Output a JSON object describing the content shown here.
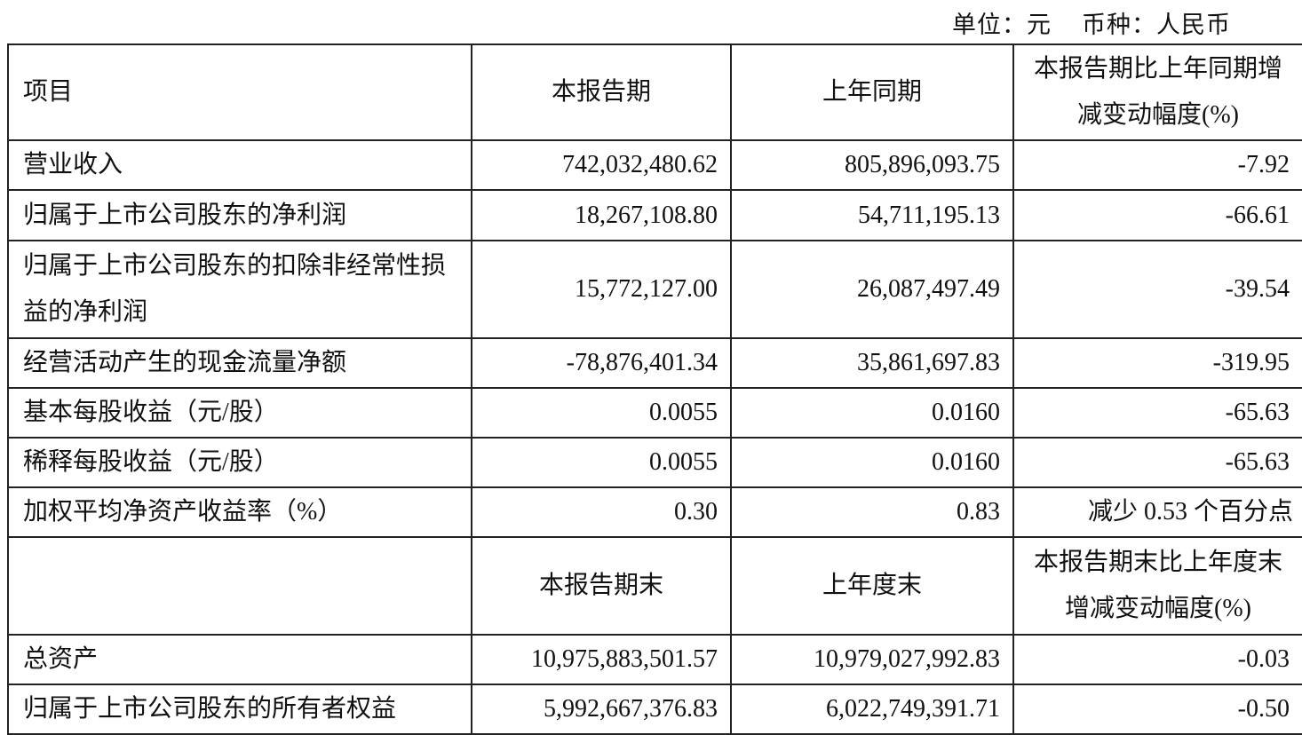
{
  "unit_label": "单位：元",
  "currency_label": "币种：人民币",
  "header": {
    "item": "项目",
    "current": "本报告期",
    "prior": "上年同期",
    "change": "本报告期比上年同期增减变动幅度(%)"
  },
  "rows": [
    {
      "label": "营业收入",
      "current": "742,032,480.62",
      "prior": "805,896,093.75",
      "change": "-7.92"
    },
    {
      "label": "归属于上市公司股东的净利润",
      "current": "18,267,108.80",
      "prior": "54,711,195.13",
      "change": "-66.61"
    },
    {
      "label": "归属于上市公司股东的扣除非经常性损益的净利润",
      "current": "15,772,127.00",
      "prior": "26,087,497.49",
      "change": "-39.54"
    },
    {
      "label": "经营活动产生的现金流量净额",
      "current": "-78,876,401.34",
      "prior": "35,861,697.83",
      "change": "-319.95"
    },
    {
      "label": "基本每股收益（元/股）",
      "current": "0.0055",
      "prior": "0.0160",
      "change": "-65.63"
    },
    {
      "label": "稀释每股收益（元/股）",
      "current": "0.0055",
      "prior": "0.0160",
      "change": "-65.63"
    },
    {
      "label": "加权平均净资产收益率（%）",
      "current": "0.30",
      "prior": "0.83",
      "change": "减少 0.53 个百分点"
    }
  ],
  "header2": {
    "item": "",
    "current": "本报告期末",
    "prior": "上年度末",
    "change": "本报告期末比上年度末增减变动幅度(%)"
  },
  "rows2": [
    {
      "label": "总资产",
      "current": "10,975,883,501.57",
      "prior": "10,979,027,992.83",
      "change": "-0.03"
    },
    {
      "label": "归属于上市公司股东的所有者权益",
      "current": "5,992,667,376.83",
      "prior": "6,022,749,391.71",
      "change": "-0.50"
    }
  ]
}
